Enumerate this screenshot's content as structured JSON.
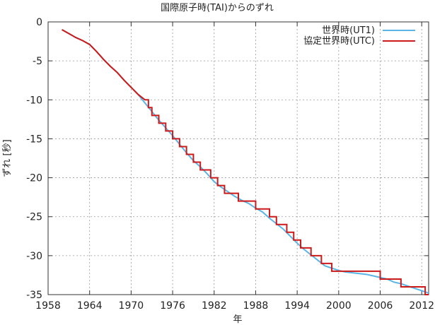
{
  "chart_data": {
    "type": "line",
    "title": "国際原子時(TAI)からのずれ",
    "xlabel": "年",
    "ylabel": "ずれ [秒]",
    "xlim": [
      1958,
      2013
    ],
    "ylim": [
      -35,
      0
    ],
    "xticks": [
      1958,
      1964,
      1970,
      1976,
      1982,
      1988,
      1994,
      2000,
      2006,
      2012
    ],
    "yticks": [
      0,
      -5,
      -10,
      -15,
      -20,
      -25,
      -30,
      -35
    ],
    "grid": true,
    "legend_position": "top-right",
    "series": [
      {
        "name": "世界時(UT1)",
        "color": "#5ab4e6",
        "x": [
          1960,
          1961,
          1962,
          1963,
          1964,
          1965,
          1966,
          1967,
          1968,
          1969,
          1970,
          1971,
          1972,
          1973,
          1974,
          1975,
          1976,
          1977,
          1978,
          1979,
          1980,
          1981,
          1982,
          1983,
          1984,
          1985,
          1986,
          1987,
          1988,
          1989,
          1990,
          1991,
          1992,
          1993,
          1994,
          1995,
          1996,
          1997,
          1998,
          1999,
          2000,
          2001,
          2002,
          2003,
          2004,
          2005,
          2006,
          2007,
          2008,
          2009,
          2010,
          2011,
          2012,
          2013
        ],
        "values": [
          -1.0,
          -1.5,
          -2.0,
          -2.4,
          -2.9,
          -3.8,
          -4.8,
          -5.7,
          -6.5,
          -7.5,
          -8.4,
          -9.3,
          -10.4,
          -11.5,
          -12.6,
          -13.6,
          -14.6,
          -15.7,
          -16.8,
          -17.8,
          -18.6,
          -19.5,
          -20.5,
          -21.2,
          -21.8,
          -22.4,
          -22.9,
          -23.3,
          -23.9,
          -24.4,
          -25.2,
          -25.9,
          -26.6,
          -27.5,
          -28.4,
          -29.2,
          -29.9,
          -30.6,
          -31.3,
          -31.6,
          -31.9,
          -32.1,
          -32.2,
          -32.3,
          -32.4,
          -32.6,
          -32.8,
          -33.0,
          -33.4,
          -33.6,
          -33.9,
          -34.2,
          -34.5,
          -34.8
        ]
      },
      {
        "name": "協定世界時(UTC)",
        "color": "#cc1a1a",
        "x": [
          1960,
          1961,
          1962,
          1963,
          1964,
          1965,
          1966,
          1967,
          1968,
          1969,
          1970,
          1971,
          1972,
          1972,
          1972.5,
          1972.5,
          1973,
          1973,
          1974,
          1974,
          1975,
          1975,
          1976,
          1976,
          1977,
          1977,
          1978,
          1978,
          1979,
          1979,
          1980,
          1980,
          1981.5,
          1981.5,
          1982.5,
          1982.5,
          1983.5,
          1983.5,
          1985.5,
          1985.5,
          1988,
          1988,
          1990,
          1990,
          1991,
          1991,
          1992.5,
          1992.5,
          1993.5,
          1993.5,
          1994.5,
          1994.5,
          1996,
          1996,
          1997.5,
          1997.5,
          1999,
          1999,
          2006,
          2006,
          2009,
          2009,
          2012.5,
          2012.5,
          2013
        ],
        "values": [
          -1.0,
          -1.5,
          -2.0,
          -2.4,
          -2.9,
          -3.8,
          -4.8,
          -5.7,
          -6.5,
          -7.5,
          -8.4,
          -9.3,
          -10,
          -10,
          -10,
          -11,
          -11,
          -12,
          -12,
          -13,
          -13,
          -14,
          -14,
          -15,
          -15,
          -16,
          -16,
          -17,
          -17,
          -18,
          -18,
          -19,
          -19,
          -20,
          -20,
          -21,
          -21,
          -22,
          -22,
          -23,
          -23,
          -24,
          -24,
          -25,
          -25,
          -26,
          -26,
          -27,
          -27,
          -28,
          -28,
          -29,
          -29,
          -30,
          -30,
          -31,
          -31,
          -32,
          -32,
          -33,
          -33,
          -34,
          -34,
          -35,
          -35
        ]
      }
    ]
  }
}
